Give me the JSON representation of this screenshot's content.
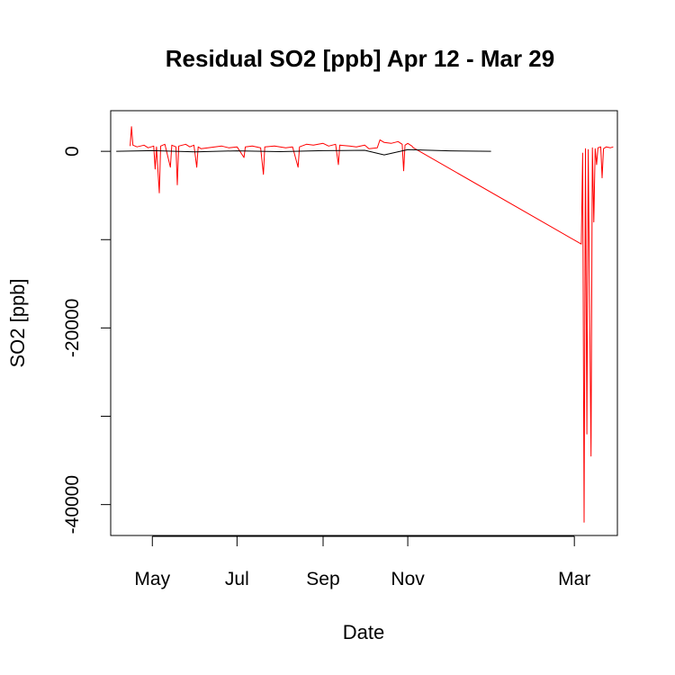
{
  "chart_data": {
    "type": "line",
    "title": "Residual SO2 [ppb] Apr 12 - Mar 29",
    "xlabel": "Date",
    "ylabel": "SO2 [ppb]",
    "x_ticks": [
      "May",
      "Jul",
      "Sep",
      "Nov",
      "Mar"
    ],
    "x_tick_dates": [
      "2000-05-01",
      "2000-07-01",
      "2000-09-01",
      "2000-11-01",
      "2001-03-01"
    ],
    "y_ticks": [
      0,
      -10000,
      -20000,
      -30000,
      -40000
    ],
    "y_tick_labels": [
      "0",
      "",
      "-20000",
      "",
      "-40000"
    ],
    "xlim": [
      "2000-04-01",
      "2001-04-01"
    ],
    "ylim": [
      -43500,
      4600
    ],
    "grid": false,
    "series": [
      {
        "color": "#ff0000",
        "points": [
          [
            "2000-04-15",
            600
          ],
          [
            "2000-04-16",
            2800
          ],
          [
            "2000-04-17",
            700
          ],
          [
            "2000-04-20",
            500
          ],
          [
            "2000-04-25",
            700
          ],
          [
            "2000-04-28",
            400
          ],
          [
            "2000-05-02",
            600
          ],
          [
            "2000-05-03",
            -2000
          ],
          [
            "2000-05-04",
            500
          ],
          [
            "2000-05-06",
            -4700
          ],
          [
            "2000-05-07",
            600
          ],
          [
            "2000-05-10",
            800
          ],
          [
            "2000-05-14",
            -1800
          ],
          [
            "2000-05-15",
            700
          ],
          [
            "2000-05-18",
            500
          ],
          [
            "2000-05-19",
            -3800
          ],
          [
            "2000-05-20",
            600
          ],
          [
            "2000-05-25",
            800
          ],
          [
            "2000-05-28",
            500
          ],
          [
            "2000-05-31",
            700
          ],
          [
            "2000-06-02",
            -1800
          ],
          [
            "2000-06-03",
            500
          ],
          [
            "2000-06-05",
            300
          ],
          [
            "2000-06-15",
            500
          ],
          [
            "2000-06-20",
            600
          ],
          [
            "2000-06-25",
            400
          ],
          [
            "2000-07-01",
            500
          ],
          [
            "2000-07-06",
            -700
          ],
          [
            "2000-07-07",
            500
          ],
          [
            "2000-07-12",
            600
          ],
          [
            "2000-07-18",
            400
          ],
          [
            "2000-07-20",
            -2600
          ],
          [
            "2000-07-21",
            500
          ],
          [
            "2000-07-28",
            600
          ],
          [
            "2000-08-05",
            400
          ],
          [
            "2000-08-10",
            500
          ],
          [
            "2000-08-14",
            -1800
          ],
          [
            "2000-08-15",
            500
          ],
          [
            "2000-08-20",
            800
          ],
          [
            "2000-08-25",
            700
          ],
          [
            "2000-09-01",
            900
          ],
          [
            "2000-09-05",
            600
          ],
          [
            "2000-09-10",
            800
          ],
          [
            "2000-09-12",
            -1500
          ],
          [
            "2000-09-13",
            700
          ],
          [
            "2000-09-20",
            600
          ],
          [
            "2000-09-25",
            500
          ],
          [
            "2000-10-01",
            700
          ],
          [
            "2000-10-04",
            300
          ],
          [
            "2000-10-10",
            400
          ],
          [
            "2000-10-12",
            1300
          ],
          [
            "2000-10-15",
            1000
          ],
          [
            "2000-10-20",
            900
          ],
          [
            "2000-10-25",
            1100
          ],
          [
            "2000-10-28",
            800
          ],
          [
            "2000-10-29",
            -2200
          ],
          [
            "2000-10-30",
            700
          ],
          [
            "2000-11-01",
            900
          ],
          [
            "2000-11-04",
            600
          ],
          [
            "2000-11-05",
            400
          ],
          [
            "2001-03-06",
            -10500
          ],
          [
            "2001-03-07",
            -200
          ],
          [
            "2001-03-08",
            -42000
          ],
          [
            "2001-03-09",
            300
          ],
          [
            "2001-03-10",
            -32000
          ],
          [
            "2001-03-11",
            200
          ],
          [
            "2001-03-13",
            -34500
          ],
          [
            "2001-03-14",
            400
          ],
          [
            "2001-03-15",
            -8000
          ],
          [
            "2001-03-16",
            300
          ],
          [
            "2001-03-17",
            -1500
          ],
          [
            "2001-03-18",
            400
          ],
          [
            "2001-03-20",
            500
          ],
          [
            "2001-03-21",
            -3000
          ],
          [
            "2001-03-22",
            300
          ],
          [
            "2001-03-24",
            500
          ],
          [
            "2001-03-27",
            400
          ],
          [
            "2001-03-29",
            500
          ]
        ]
      },
      {
        "color": "#000000",
        "points": [
          [
            "2000-04-05",
            0
          ],
          [
            "2000-05-01",
            80
          ],
          [
            "2000-06-01",
            -60
          ],
          [
            "2000-07-01",
            60
          ],
          [
            "2000-08-01",
            -40
          ],
          [
            "2000-09-01",
            80
          ],
          [
            "2000-10-01",
            120
          ],
          [
            "2000-10-15",
            -400
          ],
          [
            "2000-11-01",
            200
          ],
          [
            "2000-12-01",
            50
          ],
          [
            "2000-12-31",
            0
          ]
        ]
      }
    ]
  }
}
